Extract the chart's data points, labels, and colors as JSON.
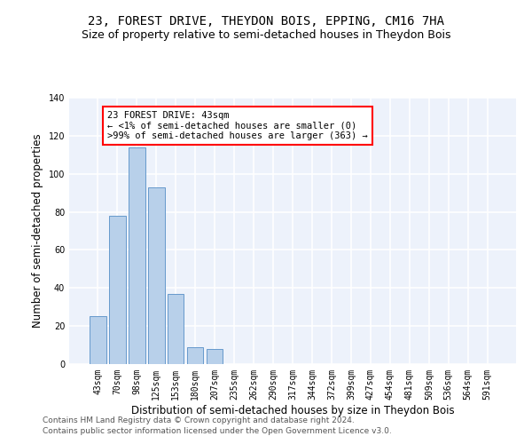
{
  "title": "23, FOREST DRIVE, THEYDON BOIS, EPPING, CM16 7HA",
  "subtitle": "Size of property relative to semi-detached houses in Theydon Bois",
  "xlabel": "Distribution of semi-detached houses by size in Theydon Bois",
  "ylabel": "Number of semi-detached properties",
  "categories": [
    "43sqm",
    "70sqm",
    "98sqm",
    "125sqm",
    "153sqm",
    "180sqm",
    "207sqm",
    "235sqm",
    "262sqm",
    "290sqm",
    "317sqm",
    "344sqm",
    "372sqm",
    "399sqm",
    "427sqm",
    "454sqm",
    "481sqm",
    "509sqm",
    "536sqm",
    "564sqm",
    "591sqm"
  ],
  "values": [
    25,
    78,
    114,
    93,
    37,
    9,
    8,
    0,
    0,
    0,
    0,
    0,
    0,
    0,
    0,
    0,
    0,
    0,
    0,
    0,
    0
  ],
  "highlight_index": 0,
  "bar_color": "#b8d0ea",
  "bar_edge_color": "#6699cc",
  "annotation_box_text": "23 FOREST DRIVE: 43sqm\n← <1% of semi-detached houses are smaller (0)\n>99% of semi-detached houses are larger (363) →",
  "annotation_box_edge_color": "red",
  "footer_line1": "Contains HM Land Registry data © Crown copyright and database right 2024.",
  "footer_line2": "Contains public sector information licensed under the Open Government Licence v3.0.",
  "ylim": [
    0,
    140
  ],
  "yticks": [
    0,
    20,
    40,
    60,
    80,
    100,
    120,
    140
  ],
  "bg_color": "#edf2fb",
  "grid_color": "white",
  "title_fontsize": 10,
  "subtitle_fontsize": 9,
  "axis_label_fontsize": 8.5,
  "tick_fontsize": 7,
  "annotation_fontsize": 7.5,
  "footer_fontsize": 6.5
}
